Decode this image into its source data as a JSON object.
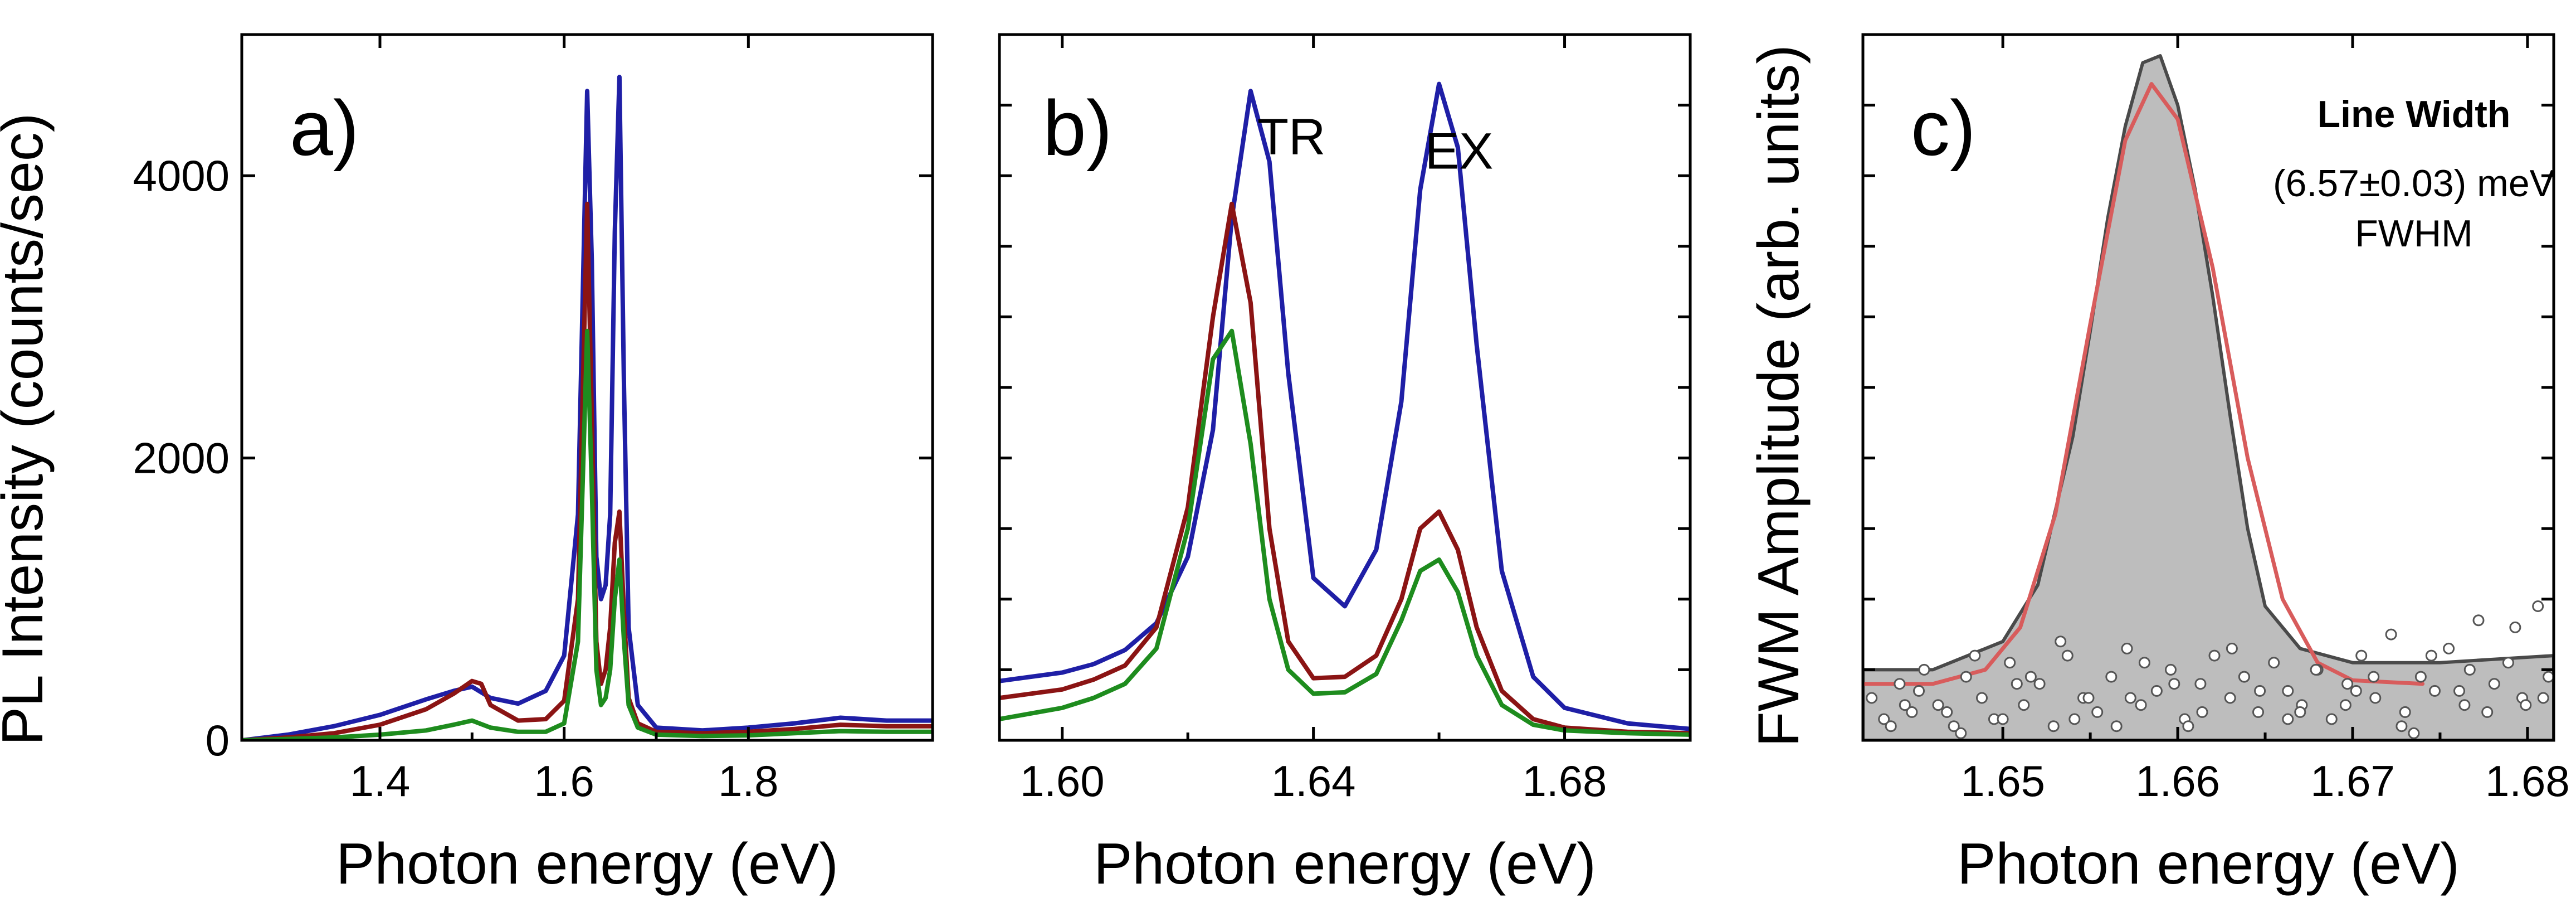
{
  "chart_data": [
    {
      "type": "line",
      "panel_label": "a)",
      "xlabel": "Photon energy (eV)",
      "ylabel": "PL Intensity (counts/sec)",
      "xlim": [
        1.25,
        2.0
      ],
      "ylim": [
        0,
        5000
      ],
      "xticks": [
        1.4,
        1.6,
        1.8
      ],
      "xtick_labels": [
        "1.4",
        "1.6",
        "1.8"
      ],
      "yticks": [
        0,
        2000,
        4000
      ],
      "ytick_labels": [
        "0",
        "2000",
        "4000"
      ],
      "series": [
        {
          "color": "#1f1fa6",
          "x": [
            1.25,
            1.3,
            1.35,
            1.4,
            1.45,
            1.48,
            1.5,
            1.52,
            1.55,
            1.58,
            1.6,
            1.615,
            1.625,
            1.63,
            1.635,
            1.64,
            1.645,
            1.65,
            1.655,
            1.66,
            1.665,
            1.67,
            1.68,
            1.7,
            1.75,
            1.8,
            1.85,
            1.9,
            1.95,
            2.0
          ],
          "y": [
            0,
            40,
            100,
            180,
            290,
            350,
            380,
            300,
            260,
            350,
            600,
            1600,
            4600,
            3400,
            1300,
            1000,
            1100,
            1600,
            3600,
            4700,
            2500,
            800,
            250,
            90,
            70,
            90,
            120,
            160,
            140,
            140
          ]
        },
        {
          "color": "#8b1414",
          "x": [
            1.25,
            1.3,
            1.35,
            1.4,
            1.45,
            1.48,
            1.5,
            1.51,
            1.52,
            1.55,
            1.58,
            1.6,
            1.615,
            1.625,
            1.63,
            1.635,
            1.64,
            1.645,
            1.65,
            1.655,
            1.66,
            1.665,
            1.67,
            1.68,
            1.7,
            1.75,
            1.8,
            1.85,
            1.9,
            1.95,
            2.0
          ],
          "y": [
            0,
            20,
            50,
            110,
            220,
            330,
            420,
            400,
            250,
            140,
            150,
            280,
            1000,
            3800,
            2300,
            700,
            400,
            500,
            800,
            1400,
            1620,
            900,
            300,
            120,
            60,
            50,
            60,
            80,
            110,
            100,
            100
          ]
        },
        {
          "color": "#1e8c1e",
          "x": [
            1.25,
            1.3,
            1.35,
            1.4,
            1.45,
            1.48,
            1.5,
            1.52,
            1.55,
            1.58,
            1.6,
            1.615,
            1.625,
            1.63,
            1.635,
            1.64,
            1.645,
            1.65,
            1.655,
            1.66,
            1.665,
            1.67,
            1.68,
            1.7,
            1.75,
            1.8,
            1.85,
            1.9,
            1.95,
            2.0
          ],
          "y": [
            0,
            10,
            20,
            40,
            70,
            110,
            140,
            90,
            60,
            60,
            120,
            700,
            2900,
            1800,
            500,
            250,
            300,
            500,
            1000,
            1280,
            700,
            250,
            90,
            40,
            30,
            35,
            50,
            65,
            60,
            60
          ]
        }
      ]
    },
    {
      "type": "line",
      "panel_label": "b)",
      "xlabel": "Photon energy (eV)",
      "xlim": [
        1.59,
        1.7
      ],
      "ylim": [
        0,
        5000
      ],
      "xticks": [
        1.6,
        1.64,
        1.68
      ],
      "xtick_labels": [
        "1.60",
        "1.64",
        "1.68"
      ],
      "annotations": [
        {
          "text": "TR",
          "x": 1.6365,
          "y": 4150
        },
        {
          "text": "EX",
          "x": 1.6632,
          "y": 4050
        }
      ],
      "series": [
        {
          "color": "#1f1fa6",
          "x": [
            1.59,
            1.6,
            1.605,
            1.61,
            1.615,
            1.62,
            1.624,
            1.627,
            1.63,
            1.633,
            1.636,
            1.64,
            1.645,
            1.65,
            1.654,
            1.657,
            1.66,
            1.663,
            1.666,
            1.67,
            1.675,
            1.68,
            1.69,
            1.7
          ],
          "y": [
            420,
            480,
            540,
            640,
            830,
            1300,
            2200,
            3700,
            4600,
            4100,
            2600,
            1150,
            950,
            1350,
            2400,
            3900,
            4650,
            4200,
            2800,
            1200,
            450,
            230,
            120,
            80
          ]
        },
        {
          "color": "#8b1414",
          "x": [
            1.59,
            1.6,
            1.605,
            1.61,
            1.615,
            1.62,
            1.624,
            1.627,
            1.63,
            1.633,
            1.636,
            1.64,
            1.645,
            1.65,
            1.654,
            1.657,
            1.66,
            1.663,
            1.666,
            1.67,
            1.675,
            1.68,
            1.69,
            1.7
          ],
          "y": [
            300,
            360,
            430,
            530,
            800,
            1650,
            3000,
            3800,
            3100,
            1500,
            700,
            440,
            450,
            600,
            1000,
            1500,
            1620,
            1350,
            800,
            350,
            150,
            90,
            60,
            50
          ]
        },
        {
          "color": "#1e8c1e",
          "x": [
            1.59,
            1.6,
            1.605,
            1.61,
            1.615,
            1.62,
            1.624,
            1.627,
            1.63,
            1.633,
            1.636,
            1.64,
            1.645,
            1.65,
            1.654,
            1.657,
            1.66,
            1.663,
            1.666,
            1.67,
            1.675,
            1.68,
            1.69,
            1.7
          ],
          "y": [
            150,
            230,
            300,
            400,
            650,
            1500,
            2700,
            2900,
            2100,
            1000,
            500,
            330,
            340,
            470,
            850,
            1200,
            1280,
            1050,
            600,
            250,
            110,
            70,
            50,
            40
          ]
        }
      ]
    },
    {
      "type": "area",
      "panel_label": "c)",
      "xlabel": "Photon energy (eV)",
      "ylabel": "FWM Amplitude (arb. units)",
      "xlim": [
        1.642,
        1.6815
      ],
      "ylim": [
        0,
        1.0
      ],
      "xticks": [
        1.65,
        1.66,
        1.67,
        1.68
      ],
      "xtick_labels": [
        "1.65",
        "1.66",
        "1.67",
        "1.68"
      ],
      "annotation_title": "Line Width",
      "annotation_value": "(6.57±0.03) meV",
      "annotation_unit": "FWHM",
      "series": [
        {
          "kind": "fill",
          "color": "#bdbdbd",
          "edge_color": "#4a4a4a",
          "x": [
            1.642,
            1.646,
            1.65,
            1.652,
            1.654,
            1.655,
            1.656,
            1.657,
            1.658,
            1.659,
            1.66,
            1.661,
            1.662,
            1.663,
            1.664,
            1.665,
            1.667,
            1.67,
            1.675,
            1.6815
          ],
          "y": [
            0.1,
            0.1,
            0.14,
            0.22,
            0.43,
            0.58,
            0.74,
            0.87,
            0.96,
            0.97,
            0.9,
            0.78,
            0.63,
            0.46,
            0.3,
            0.19,
            0.13,
            0.11,
            0.11,
            0.12
          ]
        },
        {
          "kind": "fit",
          "color": "#d85c5c",
          "x": [
            1.642,
            1.646,
            1.649,
            1.651,
            1.653,
            1.655,
            1.657,
            1.6585,
            1.66,
            1.662,
            1.664,
            1.666,
            1.668,
            1.67,
            1.674
          ],
          "y": [
            0.08,
            0.08,
            0.1,
            0.16,
            0.32,
            0.59,
            0.85,
            0.93,
            0.88,
            0.67,
            0.4,
            0.2,
            0.11,
            0.085,
            0.08
          ]
        },
        {
          "kind": "scatter",
          "marker": "open-circle",
          "color": "#ffffff",
          "edge_color": "#555555",
          "x": [
            1.6425,
            1.6432,
            1.6441,
            1.6448,
            1.6455,
            1.6463,
            1.6472,
            1.6479,
            1.6488,
            1.6495,
            1.6504,
            1.6512,
            1.6521,
            1.6529,
            1.6537,
            1.6546,
            1.6554,
            1.6562,
            1.6571,
            1.6579,
            1.6588,
            1.6596,
            1.6604,
            1.6613,
            1.6621,
            1.663,
            1.6638,
            1.6646,
            1.6655,
            1.6663,
            1.6671,
            1.668,
            1.6688,
            1.6697,
            1.6705,
            1.6713,
            1.6722,
            1.673,
            1.6739,
            1.6747,
            1.6755,
            1.6764,
            1.6772,
            1.6781,
            1.6789,
            1.6797,
            1.6806,
            1.6812,
            1.6436,
            1.6452,
            1.6468,
            1.6484,
            1.65,
            1.6516,
            1.6533,
            1.6549,
            1.6565,
            1.6581,
            1.6598,
            1.6614,
            1.6631,
            1.6647,
            1.6663,
            1.6679,
            1.6696,
            1.6712,
            1.6728,
            1.6745,
            1.6761,
            1.6777,
            1.6793,
            1.6809,
            1.6444,
            1.6476,
            1.6508,
            1.6541,
            1.6573,
            1.6606,
            1.6638,
            1.667,
            1.6702,
            1.6735,
            1.6767,
            1.6799
          ],
          "y": [
            0.06,
            0.03,
            0.08,
            0.04,
            0.1,
            0.05,
            0.02,
            0.09,
            0.06,
            0.03,
            0.11,
            0.05,
            0.08,
            0.02,
            0.12,
            0.06,
            0.04,
            0.09,
            0.13,
            0.05,
            0.07,
            0.1,
            0.03,
            0.08,
            0.12,
            0.06,
            0.09,
            0.04,
            0.11,
            0.07,
            0.05,
            0.1,
            0.03,
            0.08,
            0.12,
            0.06,
            0.15,
            0.04,
            0.09,
            0.07,
            0.13,
            0.05,
            0.17,
            0.08,
            0.11,
            0.06,
            0.19,
            0.09,
            0.02,
            0.07,
            0.04,
            0.12,
            0.03,
            0.09,
            0.14,
            0.06,
            0.02,
            0.11,
            0.08,
            0.04,
            0.13,
            0.07,
            0.03,
            0.1,
            0.05,
            0.09,
            0.02,
            0.12,
            0.07,
            0.04,
            0.16,
            0.06,
            0.05,
            0.01,
            0.08,
            0.03,
            0.06,
            0.02,
            0.09,
            0.04,
            0.07,
            0.01,
            0.1,
            0.05
          ]
        }
      ]
    }
  ]
}
